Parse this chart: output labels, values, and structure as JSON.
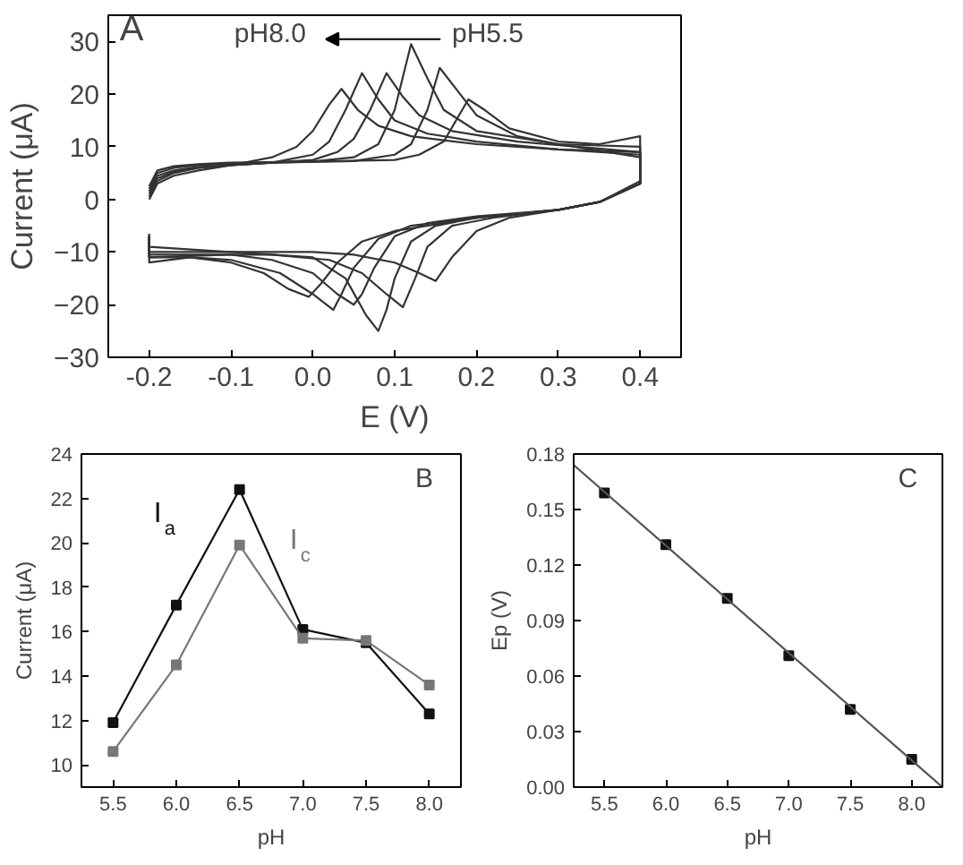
{
  "chart_data": [
    {
      "type": "line",
      "xlabel": "E (V)",
      "ylabel": "Current (μA)",
      "annotations": [
        "A",
        "pH8.0",
        "pH5.5"
      ],
      "xlim": [
        -0.25,
        0.45
      ],
      "ylim": [
        -30,
        35
      ],
      "xticks": [
        {
          "value": -0.2,
          "label": "-0.2"
        },
        {
          "value": -0.1,
          "label": "-0.1"
        },
        {
          "value": 0,
          "label": "0.0"
        },
        {
          "value": 0.1,
          "label": "0.1"
        },
        {
          "value": 0.2,
          "label": "0.2"
        },
        {
          "value": 0.3,
          "label": "0.3"
        },
        {
          "value": 0.4,
          "label": "0.4"
        }
      ],
      "yticks": [
        -30,
        -20,
        -10,
        0,
        10,
        20,
        30
      ],
      "grid": false,
      "line_style": "solid",
      "series": [
        {
          "color": "#333333",
          "x": [
            -0.2,
            -0.19,
            -0.17,
            -0.14,
            -0.1,
            -0.05,
            -0.02,
            0.0,
            0.02,
            0.035,
            0.055,
            0.08,
            0.12,
            0.2,
            0.3,
            0.4,
            0.4,
            0.35,
            0.3,
            0.2,
            0.1,
            0.06,
            0.03,
            0.01,
            -0.005,
            -0.03,
            -0.06,
            -0.1,
            -0.15,
            -0.2,
            -0.2
          ],
          "values": [
            0,
            3,
            4.5,
            5.5,
            6.5,
            8,
            10,
            13,
            18,
            21,
            17,
            14,
            12,
            10.5,
            9.5,
            9,
            3,
            -0.5,
            -2,
            -3.5,
            -6,
            -8,
            -12,
            -16,
            -18.5,
            -17,
            -14,
            -12,
            -11,
            -12,
            -7
          ]
        },
        {
          "color": "#333333",
          "x": [
            -0.2,
            -0.19,
            -0.17,
            -0.14,
            -0.1,
            -0.05,
            0.0,
            0.02,
            0.04,
            0.06,
            0.08,
            0.1,
            0.14,
            0.2,
            0.3,
            0.4,
            0.4,
            0.35,
            0.3,
            0.2,
            0.12,
            0.08,
            0.05,
            0.035,
            0.025,
            0.0,
            -0.04,
            -0.1,
            -0.15,
            -0.2,
            -0.2
          ],
          "values": [
            0.5,
            3.5,
            5,
            6,
            6.5,
            7,
            8.5,
            11,
            17,
            24,
            19,
            15,
            12.5,
            11,
            9.5,
            8.5,
            3,
            -0.5,
            -2,
            -3.5,
            -5,
            -7.5,
            -13,
            -18,
            -21,
            -18,
            -14,
            -11.5,
            -11,
            -11,
            -7
          ]
        },
        {
          "color": "#333333",
          "x": [
            -0.2,
            -0.19,
            -0.17,
            -0.14,
            -0.1,
            -0.05,
            0.0,
            0.03,
            0.05,
            0.07,
            0.09,
            0.11,
            0.13,
            0.17,
            0.25,
            0.4,
            0.4,
            0.35,
            0.3,
            0.2,
            0.14,
            0.1,
            0.075,
            0.06,
            0.05,
            0.03,
            0.0,
            -0.05,
            -0.1,
            -0.2,
            -0.2
          ],
          "values": [
            1,
            4,
            5.2,
            6,
            6.5,
            7,
            7.5,
            9,
            11.5,
            17,
            24,
            19.5,
            16,
            13,
            11,
            9,
            3,
            -0.5,
            -2,
            -3.2,
            -4.5,
            -7,
            -13,
            -18,
            -20,
            -18,
            -14,
            -11.5,
            -10.5,
            -10.5,
            -7
          ]
        },
        {
          "color": "#333333",
          "x": [
            -0.2,
            -0.19,
            -0.17,
            -0.14,
            -0.1,
            -0.05,
            0.0,
            0.05,
            0.08,
            0.1,
            0.12,
            0.14,
            0.16,
            0.2,
            0.3,
            0.4,
            0.4,
            0.35,
            0.3,
            0.2,
            0.15,
            0.12,
            0.1,
            0.09,
            0.08,
            0.065,
            0.04,
            0.0,
            -0.1,
            -0.2,
            -0.2
          ],
          "values": [
            1.5,
            4.5,
            5.5,
            6.2,
            6.5,
            7,
            7.2,
            8,
            10.5,
            17,
            29.5,
            23,
            17,
            13,
            10.5,
            10,
            3.5,
            -0.5,
            -2,
            -3.5,
            -5,
            -8,
            -15,
            -21,
            -25,
            -22,
            -15,
            -11,
            -10,
            -9,
            -6.5
          ]
        },
        {
          "color": "#333333",
          "x": [
            -0.2,
            -0.19,
            -0.17,
            -0.14,
            -0.1,
            -0.05,
            0.05,
            0.1,
            0.12,
            0.14,
            0.155,
            0.18,
            0.2,
            0.25,
            0.3,
            0.4,
            0.4,
            0.35,
            0.3,
            0.22,
            0.17,
            0.14,
            0.125,
            0.11,
            0.09,
            0.06,
            0.02,
            -0.05,
            -0.1,
            -0.2,
            -0.2
          ],
          "values": [
            2,
            5,
            6,
            6.5,
            6.8,
            7,
            7.3,
            8.5,
            10.5,
            17,
            25,
            20,
            16,
            12,
            10.5,
            8,
            3,
            -0.5,
            -2,
            -3.5,
            -5,
            -9,
            -15,
            -20.5,
            -18,
            -14,
            -11.5,
            -10.5,
            -10.5,
            -11,
            -7
          ]
        },
        {
          "color": "#333333",
          "x": [
            -0.2,
            -0.19,
            -0.17,
            -0.14,
            -0.1,
            0.0,
            0.1,
            0.13,
            0.16,
            0.175,
            0.19,
            0.21,
            0.24,
            0.3,
            0.35,
            0.4,
            0.4,
            0.35,
            0.3,
            0.24,
            0.2,
            0.17,
            0.15,
            0.13,
            0.1,
            0.05,
            0.0,
            -0.1,
            -0.2,
            -0.2
          ],
          "values": [
            2.5,
            5.5,
            6.3,
            6.7,
            7,
            7.2,
            7.5,
            8.5,
            11,
            15,
            19,
            17,
            13.5,
            11,
            10.5,
            12,
            3,
            -0.5,
            -2,
            -3.5,
            -6,
            -11,
            -15.5,
            -14,
            -12,
            -10.5,
            -10,
            -10,
            -10,
            -7
          ]
        }
      ]
    },
    {
      "type": "line",
      "xlabel": "pH",
      "ylabel": "Current (μA)",
      "annotations": [
        "B"
      ],
      "x": [
        5.5,
        6.0,
        6.5,
        7.0,
        7.5,
        8.0
      ],
      "xlim": [
        5.25,
        8.25
      ],
      "ylim": [
        9,
        24
      ],
      "xticks": [
        {
          "value": 5.5,
          "label": "5.5"
        },
        {
          "value": 6,
          "label": "6.0"
        },
        {
          "value": 6.5,
          "label": "6.5"
        },
        {
          "value": 7,
          "label": "7.0"
        },
        {
          "value": 7.5,
          "label": "7.5"
        },
        {
          "value": 8,
          "label": "8.0"
        }
      ],
      "yticks": [
        10,
        12,
        14,
        16,
        18,
        20,
        22,
        24
      ],
      "grid": false,
      "marker": "square",
      "line_style": "solid",
      "series": [
        {
          "name": "I$_{a}$",
          "color": "#111111",
          "values": [
            11.9,
            17.2,
            22.4,
            16.1,
            15.5,
            12.3
          ]
        },
        {
          "name": "I$_{c}$",
          "color": "#777777",
          "values": [
            10.6,
            14.5,
            19.9,
            15.7,
            15.6,
            13.6
          ]
        }
      ]
    },
    {
      "type": "scatter",
      "xlabel": "pH",
      "ylabel": "Ep (V)",
      "annotations": [
        "C"
      ],
      "xlim": [
        5.25,
        8.25
      ],
      "ylim": [
        0,
        0.18
      ],
      "xticks": [
        {
          "value": 5.5,
          "label": "5.5"
        },
        {
          "value": 6,
          "label": "6.0"
        },
        {
          "value": 6.5,
          "label": "6.5"
        },
        {
          "value": 7,
          "label": "7.0"
        },
        {
          "value": 7.5,
          "label": "7.5"
        },
        {
          "value": 8,
          "label": "8.0"
        }
      ],
      "yticks": [
        {
          "value": 0,
          "label": "0.00"
        },
        {
          "value": 0.03,
          "label": "0.03"
        },
        {
          "value": 0.06,
          "label": "0.06"
        },
        {
          "value": 0.09,
          "label": "0.09"
        },
        {
          "value": 0.12,
          "label": "0.12"
        },
        {
          "value": 0.15,
          "label": "0.15"
        },
        {
          "value": 0.18,
          "label": "0.18"
        }
      ],
      "grid": false,
      "marker": "square",
      "series": [
        {
          "color": "#111111",
          "x": [
            5.5,
            6.0,
            6.5,
            7.0,
            7.5,
            8.0
          ],
          "values": [
            0.159,
            0.131,
            0.102,
            0.071,
            0.042,
            0.015
          ]
        },
        {
          "type": "line",
          "marker": "none",
          "color": "#555555",
          "x": [
            5.25,
            8.25
          ],
          "values": [
            0.174,
            0.0
          ]
        }
      ]
    }
  ]
}
